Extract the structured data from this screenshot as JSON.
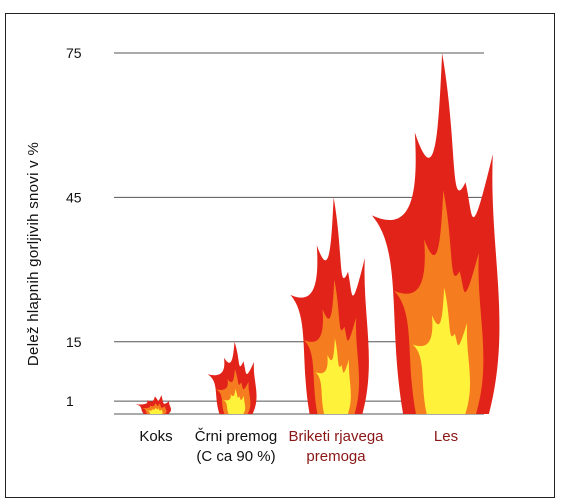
{
  "chart_data": {
    "type": "bar",
    "title": "",
    "xlabel": "",
    "ylabel": "Delež hlapnih gorljivih snovi v %",
    "y_ticks": [
      1,
      15,
      45,
      75
    ],
    "ylim": [
      0,
      75
    ],
    "grid": true,
    "bar_style": "flames",
    "flame_colors": {
      "outer": "#e2231a",
      "middle": "#f57d1f",
      "core": "#fff23a"
    },
    "categories": [
      {
        "lines": [
          "Koks"
        ],
        "color": "#111111",
        "value": 2
      },
      {
        "lines": [
          "Črni premog",
          "(C ca 90 %)"
        ],
        "color": "#111111",
        "value": 15
      },
      {
        "lines": [
          "Briketi rjavega",
          "premoga"
        ],
        "color": "#8a1616",
        "value": 45
      },
      {
        "lines": [
          "Les"
        ],
        "color": "#8a1616",
        "value": 75
      }
    ]
  }
}
